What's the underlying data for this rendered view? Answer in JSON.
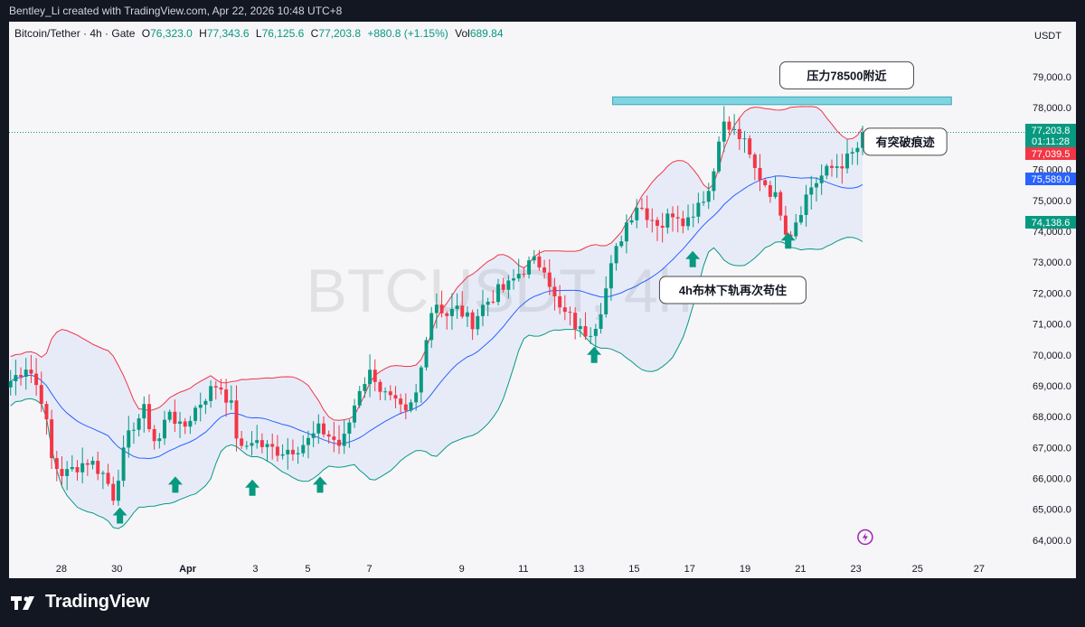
{
  "header": {
    "credit": "Bentley_Li created with TradingView.com, Apr 22, 2026 10:48 UTC+8"
  },
  "legend": {
    "symbol": "Bitcoin/Tether · 4h · Gate",
    "open_label": "O",
    "open": "76,323.0",
    "high_label": "H",
    "high": "77,343.6",
    "low_label": "L",
    "low": "76,125.6",
    "close_label": "C",
    "close": "77,203.8",
    "change": "+880.8 (+1.15%)",
    "vol_label": "Vol",
    "vol": "689.84"
  },
  "watermark": "BTCUSDT, 4h",
  "brand": "TradingView",
  "colors": {
    "up": "#089981",
    "down": "#f23645",
    "basis": "#2962ff",
    "upper": "#f23645",
    "lower": "#089981",
    "band_fill": "#2962ff",
    "resistance": "#7fd6e0"
  },
  "chart_data": {
    "type": "candlestick",
    "y_axis": {
      "currency_label": "USDT",
      "range": [
        63500,
        80200
      ],
      "ticks": [
        "64,000.0",
        "65,000.0",
        "66,000.0",
        "67,000.0",
        "68,000.0",
        "69,000.0",
        "70,000.0",
        "71,000.0",
        "72,000.0",
        "73,000.0",
        "74,000.0",
        "75,000.0",
        "76,000.0",
        "77,000.0",
        "78,000.0",
        "79,000.0"
      ]
    },
    "x_axis": {
      "ticks": [
        {
          "label": "28",
          "day": -3.5
        },
        {
          "label": "30",
          "day": -1.7
        },
        {
          "label": "Apr",
          "day": 0.6
        },
        {
          "label": "3",
          "day": 2.8
        },
        {
          "label": "5",
          "day": 4.5
        },
        {
          "label": "7",
          "day": 6.5
        },
        {
          "label": "9",
          "day": 9.5
        },
        {
          "label": "11",
          "day": 11.5
        },
        {
          "label": "13",
          "day": 13.3
        },
        {
          "label": "15",
          "day": 15.1
        },
        {
          "label": "17",
          "day": 16.9
        },
        {
          "label": "19",
          "day": 18.7
        },
        {
          "label": "21",
          "day": 20.5
        },
        {
          "label": "23",
          "day": 22.3
        },
        {
          "label": "25",
          "day": 24.3
        },
        {
          "label": "27",
          "day": 26.3
        }
      ],
      "range": [
        -5.2,
        27.8
      ]
    },
    "price_key_points": [
      [
        -5.2,
        69100
      ],
      [
        -4.6,
        69700
      ],
      [
        -4.1,
        68500
      ],
      [
        -3.8,
        66500
      ],
      [
        -3.4,
        66100
      ],
      [
        -3.0,
        66400
      ],
      [
        -2.6,
        66600
      ],
      [
        -2.1,
        66100
      ],
      [
        -1.8,
        65400
      ],
      [
        -1.6,
        66400
      ],
      [
        -1.2,
        67700
      ],
      [
        -0.8,
        68200
      ],
      [
        -0.4,
        67000
      ],
      [
        0.0,
        68300
      ],
      [
        0.4,
        67500
      ],
      [
        0.8,
        68200
      ],
      [
        1.2,
        68700
      ],
      [
        1.6,
        69100
      ],
      [
        2.0,
        68400
      ],
      [
        2.3,
        66800
      ],
      [
        2.7,
        67300
      ],
      [
        3.1,
        67000
      ],
      [
        3.6,
        66900
      ],
      [
        4.1,
        67000
      ],
      [
        4.5,
        67200
      ],
      [
        4.9,
        67600
      ],
      [
        5.3,
        67300
      ],
      [
        5.6,
        67000
      ],
      [
        5.9,
        68000
      ],
      [
        6.2,
        69000
      ],
      [
        6.6,
        69500
      ],
      [
        6.9,
        68800
      ],
      [
        7.3,
        68400
      ],
      [
        7.7,
        68000
      ],
      [
        8.1,
        68900
      ],
      [
        8.3,
        70500
      ],
      [
        8.6,
        71800
      ],
      [
        9.0,
        71300
      ],
      [
        9.4,
        71500
      ],
      [
        9.8,
        71000
      ],
      [
        10.2,
        71600
      ],
      [
        10.6,
        72000
      ],
      [
        11.0,
        72200
      ],
      [
        11.4,
        72700
      ],
      [
        11.8,
        73000
      ],
      [
        12.2,
        72900
      ],
      [
        12.6,
        71500
      ],
      [
        13.0,
        71200
      ],
      [
        13.4,
        70700
      ],
      [
        13.8,
        70900
      ],
      [
        14.1,
        71800
      ],
      [
        14.4,
        73000
      ],
      [
        14.8,
        74200
      ],
      [
        15.2,
        74900
      ],
      [
        15.6,
        74500
      ],
      [
        16.0,
        74200
      ],
      [
        16.4,
        74700
      ],
      [
        16.8,
        74300
      ],
      [
        17.2,
        75000
      ],
      [
        17.6,
        75400
      ],
      [
        17.9,
        77500
      ],
      [
        18.2,
        77300
      ],
      [
        18.6,
        77000
      ],
      [
        19.0,
        76000
      ],
      [
        19.4,
        75500
      ],
      [
        19.8,
        74900
      ],
      [
        20.1,
        73800
      ],
      [
        20.4,
        74500
      ],
      [
        20.8,
        75400
      ],
      [
        21.2,
        75800
      ],
      [
        21.6,
        76100
      ],
      [
        22.0,
        76300
      ],
      [
        22.3,
        76600
      ],
      [
        22.6,
        77200
      ]
    ],
    "current_price": 77203.8,
    "price_tags": [
      {
        "label": "77,203.8",
        "value": 77203.8,
        "color": "#089981"
      },
      {
        "label": "01:11:28",
        "color": "#089981"
      },
      {
        "label": "77,039.5",
        "value": 77039.5,
        "color": "#f23645"
      },
      {
        "label": "75,589.0",
        "value": 75589.0,
        "color": "#2962ff"
      },
      {
        "label": "74,138.6",
        "value": 74138.6,
        "color": "#089981"
      }
    ],
    "resistance": {
      "from_day": 14.4,
      "to_day": 25.4,
      "low": 78100,
      "high": 78350
    },
    "annotations": [
      {
        "text": "压力78500附近",
        "day": 22.0,
        "value": 79050
      },
      {
        "text": "有突破痕迹",
        "day": 23.9,
        "value": 76900
      },
      {
        "text": "4h布林下轨再次苟住",
        "day": 18.3,
        "value": 72100
      }
    ],
    "support_arrows": [
      {
        "day": -1.6,
        "value": 64800
      },
      {
        "day": 0.2,
        "value": 65800
      },
      {
        "day": 2.7,
        "value": 65700
      },
      {
        "day": 4.9,
        "value": 65800
      },
      {
        "day": 13.8,
        "value": 70000
      },
      {
        "day": 17.0,
        "value": 73100
      },
      {
        "day": 20.1,
        "value": 73700
      }
    ],
    "bollinger": {
      "period": 20,
      "multiplier": 2,
      "grid": false
    },
    "alert_icon": {
      "day": 22.6,
      "value": 64100
    }
  }
}
